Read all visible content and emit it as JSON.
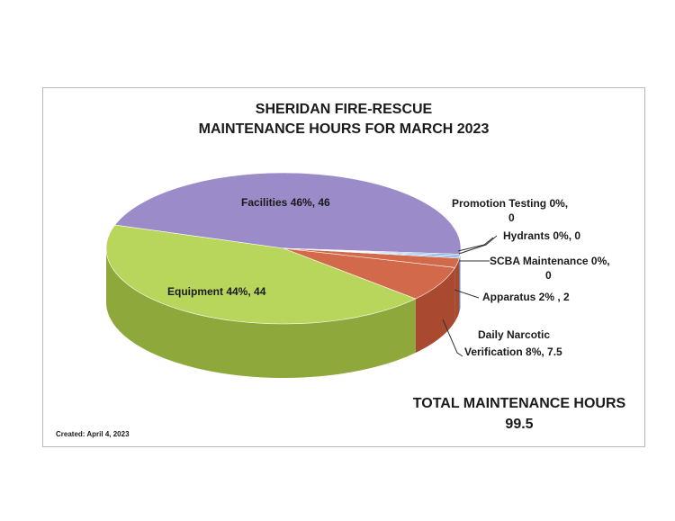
{
  "chart_data": {
    "type": "pie",
    "title": "SHERIDAN FIRE-RESCUE",
    "subtitle": "MAINTENANCE HOURS FOR MARCH 2023",
    "slices": [
      {
        "label": "Facilities",
        "text": "Facilities  46%, 46",
        "value": 46,
        "percent": 46,
        "color": "#9b8bc8",
        "side": "#7a6aa6"
      },
      {
        "label": "Promotion Testing",
        "text_1": "Promotion Testing  0%,",
        "text_2": "0",
        "value": 0,
        "percent": 0,
        "color": "#6d9fd6",
        "side": "#4f7cb0"
      },
      {
        "label": "Hydrants",
        "text": "Hydrants  0%, 0",
        "value": 0,
        "percent": 0,
        "color": "#6aa3d8",
        "side": "#4a80b4"
      },
      {
        "label": "SCBA Maintenance",
        "text_1": "SCBA Maintenance  0%,",
        "text_2": "0",
        "value": 0,
        "percent": 0,
        "color": "#5d98cf",
        "side": "#3f74a8"
      },
      {
        "label": "Apparatus",
        "text": "Apparatus  2%  , 2",
        "value": 2,
        "percent": 2,
        "color": "#d2694a",
        "side": "#a94a30"
      },
      {
        "label": "Daily Narcotic Verification",
        "text_1": "Daily Narcotic",
        "text_2": "Verification  8%, 7.5",
        "value": 7.5,
        "percent": 8,
        "color": "#d2694a",
        "side": "#a94a30"
      },
      {
        "label": "Equipment",
        "text": "Equipment  44%, 44",
        "value": 44,
        "percent": 44,
        "color": "#b8d65c",
        "side": "#8fa83c"
      }
    ],
    "legend": "none"
  },
  "summary": {
    "total_label": "TOTAL MAINTENANCE HOURS",
    "total_value": "99.5"
  },
  "footer": {
    "created": "Created:  April 4, 2023"
  }
}
